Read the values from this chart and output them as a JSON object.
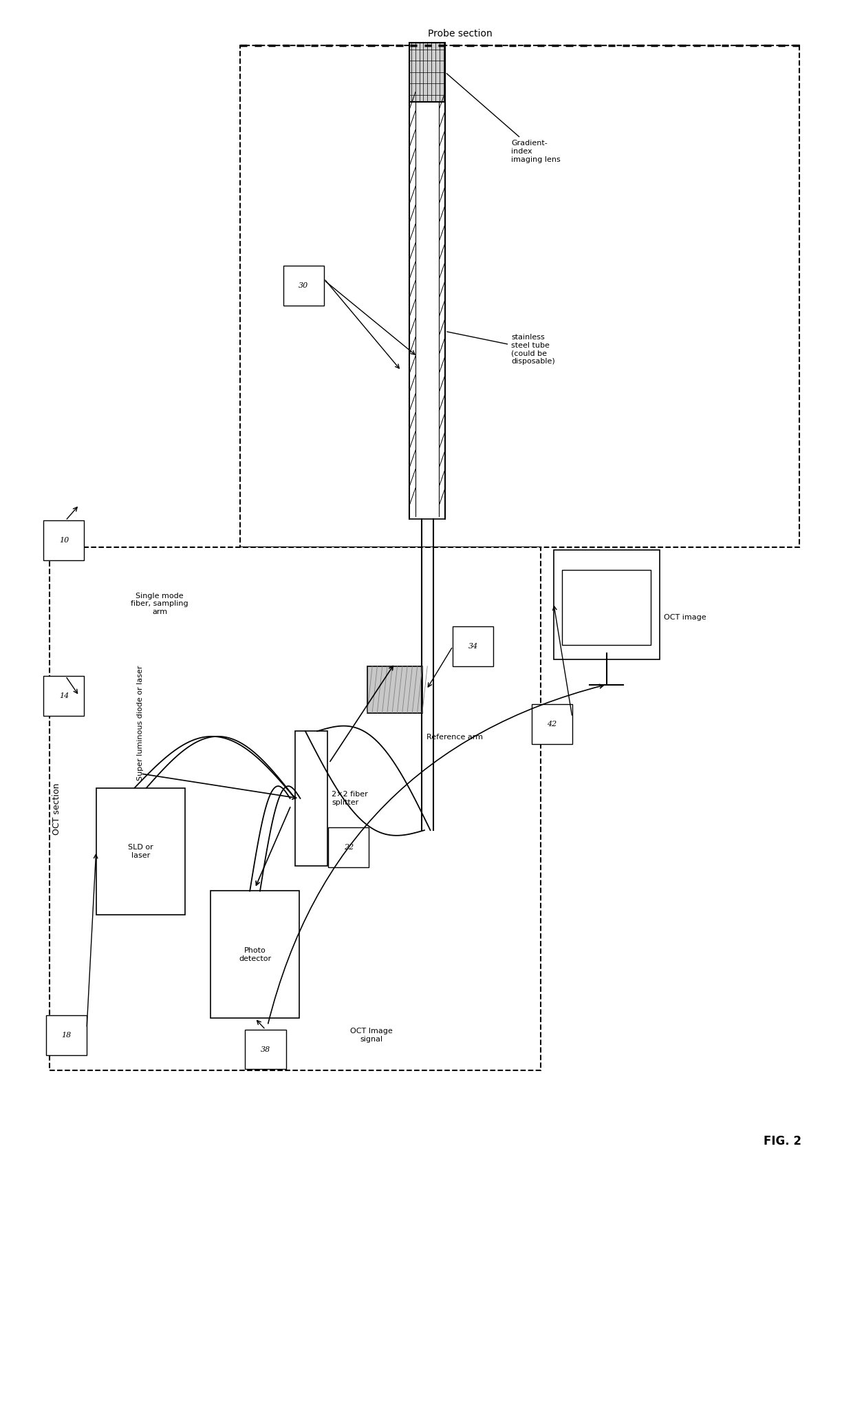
{
  "fig_width": 12.4,
  "fig_height": 20.63,
  "bg_color": "#ffffff",
  "fig_label": "FIG. 2",
  "probe_section": {
    "label": "Probe section",
    "ref30_label": "30",
    "label_gradient": "Gradient-\nindex\nimaging lens",
    "label_stainless": "stainless\nsteel tube\n(could be\ndisposable)"
  },
  "oct_section": {
    "label": "OCT section",
    "sld_label": "SLD or\nlaser",
    "sld_sublabel": "Super luminous diode or laser",
    "photodet_label": "Photo\ndetector",
    "splitter_label": "2×2 fiber\nsplitter",
    "ref_arm_label": "Reference arm",
    "sampling_label": "Single mode\nfiber, sampling\narm",
    "ref22_label": "22",
    "ref34_label": "34",
    "ref18_label": "18",
    "ref10_label": "10",
    "ref14_label": "14"
  },
  "oct_image_label": "OCT image",
  "ref42_label": "42",
  "oct_signal_label": "OCT Image\nsignal",
  "ref38_label": "38"
}
